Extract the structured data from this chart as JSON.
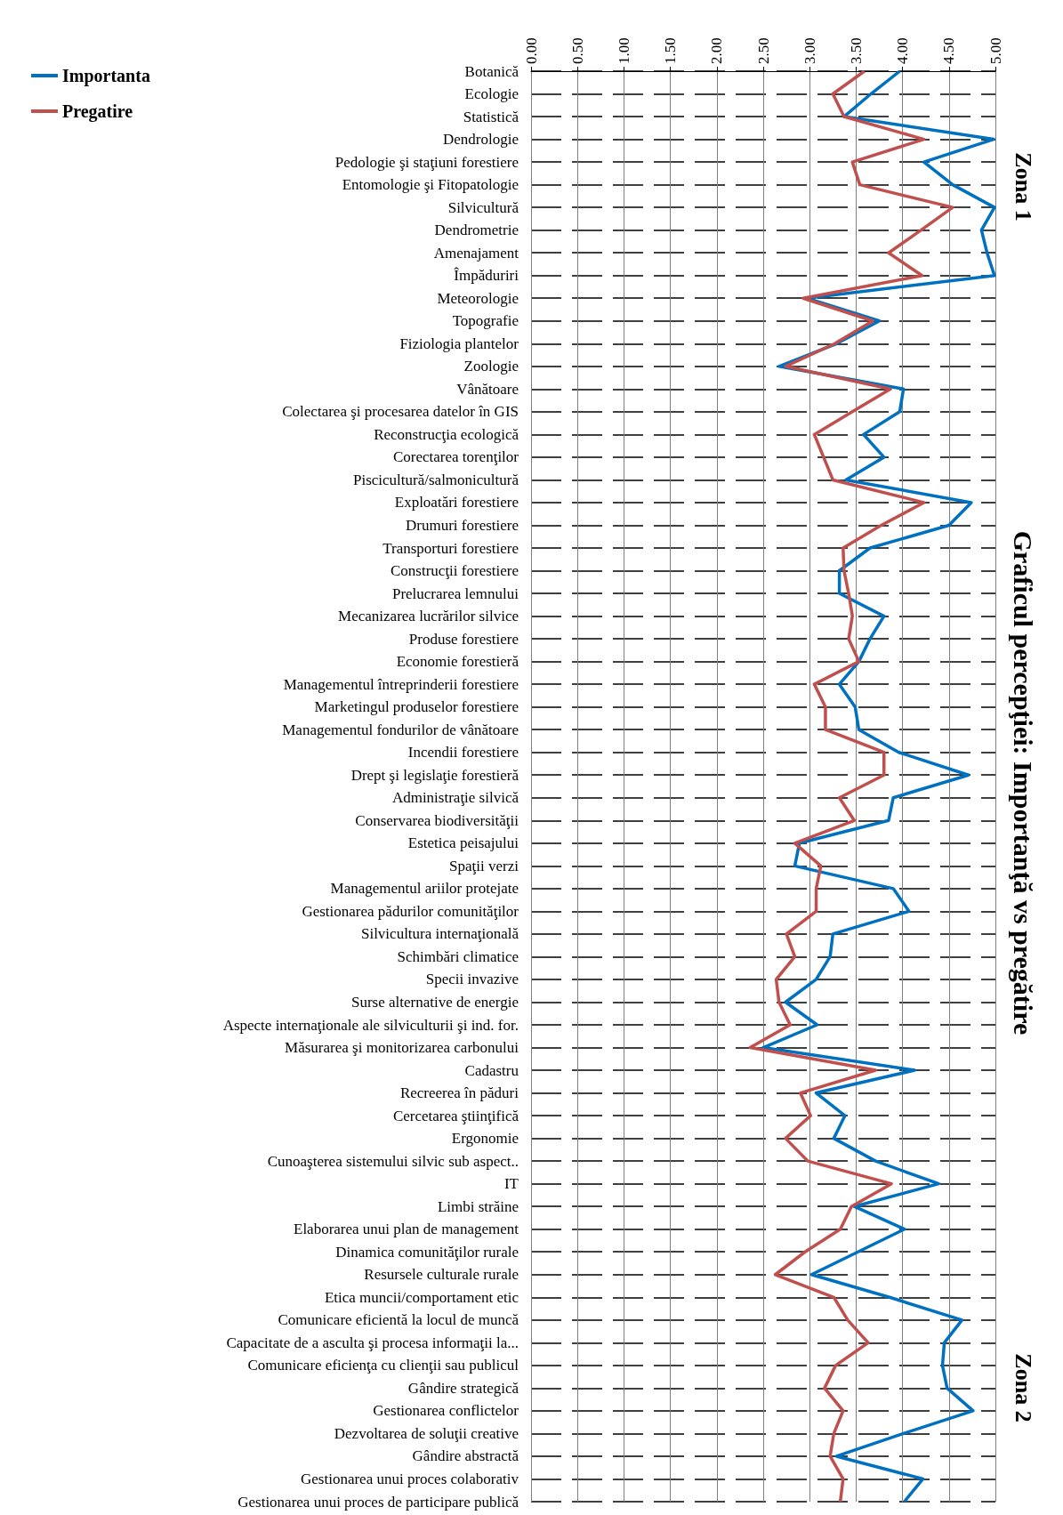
{
  "chart_data": {
    "type": "line",
    "orientation": "horizontal",
    "title": "Graficul percepţiei: Importanţă vs pregătire",
    "annotations": [
      "Zona 1",
      "Zona 2"
    ],
    "categories": [
      "Botanică",
      "Ecologie",
      "Statistică",
      "Dendrologie",
      "Pedologie şi staţiuni forestiere",
      "Entomologie şi Fitopatologie",
      "Silvicultură",
      "Dendrometrie",
      "Amenajament",
      "Împăduriri",
      "Meteorologie",
      "Topografie",
      "Fiziologia plantelor",
      "Zoologie",
      "Vânătoare",
      "Colectarea şi procesarea datelor în GIS",
      "Reconstrucţia ecologică",
      "Corectarea torenţilor",
      "Piscicultură/salmonicultură",
      "Exploatări forestiere",
      "Drumuri forestiere",
      "Transporturi forestiere",
      "Construcţii forestiere",
      "Prelucrarea lemnului",
      "Mecanizarea lucrărilor silvice",
      "Produse forestiere",
      "Economie forestieră",
      "Managementul întreprinderii forestiere",
      "Marketingul produselor forestiere",
      "Managementul fondurilor de vânătoare",
      "Incendii forestiere",
      "Drept şi legislaţie forestieră",
      "Administraţie silvică",
      "Conservarea biodiversităţii",
      "Estetica peisajului",
      "Spaţii verzi",
      "Managementul ariilor protejate",
      "Gestionarea pădurilor comunităţilor",
      "Silvicultura internaţională",
      "Schimbări climatice",
      "Specii invazive",
      "Surse alternative de energie",
      "Aspecte internaţionale ale silviculturii şi ind. for.",
      "Măsurarea şi monitorizarea carbonului",
      "Cadastru",
      "Recreerea în păduri",
      "Cercetarea ştiinţifică",
      "Ergonomie",
      "Cunoaşterea sistemului silvic sub aspect..",
      "IT",
      "Limbi străine",
      "Elaborarea unui plan de management",
      "Dinamica comunităţilor rurale",
      "Resursele culturale rurale",
      "Etica muncii/comportament etic",
      "Comunicare eficientă la locul de muncă",
      "Capacitate de a asculta şi procesa informaţii la...",
      "Comunicare eficienţa cu clienţii sau publicul",
      "Gândire strategică",
      "Gestionarea conflictelor",
      "Dezvoltarea de soluţii creative",
      "Gândire abstractă",
      "Gestionarea unui proces colaborativ",
      "Gestionarea unui proces de participare publică"
    ],
    "series": [
      {
        "name": "Importanta",
        "color": "#0070c0",
        "values": [
          3.97,
          3.66,
          3.37,
          4.98,
          4.23,
          4.54,
          4.99,
          4.85,
          4.91,
          4.99,
          2.97,
          3.75,
          3.29,
          2.67,
          4.01,
          3.97,
          3.58,
          3.8,
          3.39,
          4.74,
          4.5,
          3.65,
          3.32,
          3.32,
          3.8,
          3.65,
          3.53,
          3.32,
          3.49,
          3.53,
          3.96,
          4.71,
          3.9,
          3.85,
          2.89,
          2.84,
          3.9,
          4.07,
          3.25,
          3.22,
          3.07,
          2.74,
          3.08,
          2.5,
          4.13,
          3.07,
          3.38,
          3.26,
          3.71,
          4.39,
          3.48,
          4.02,
          3.52,
          3.02,
          3.86,
          4.64,
          4.45,
          4.43,
          4.48,
          4.76,
          4.01,
          3.29,
          4.22,
          4.02
        ]
      },
      {
        "name": "Pregatire",
        "color": "#c0504d",
        "values": [
          3.59,
          3.25,
          3.37,
          4.23,
          3.46,
          3.54,
          4.54,
          4.2,
          3.85,
          4.21,
          2.93,
          3.68,
          3.27,
          2.74,
          3.87,
          3.46,
          3.05,
          3.15,
          3.25,
          4.23,
          3.77,
          3.36,
          3.37,
          3.42,
          3.46,
          3.42,
          3.53,
          3.05,
          3.17,
          3.17,
          3.8,
          3.8,
          3.32,
          3.48,
          2.84,
          3.12,
          3.07,
          3.07,
          2.75,
          2.84,
          2.64,
          2.67,
          2.79,
          2.36,
          3.71,
          2.9,
          3.01,
          2.74,
          2.98,
          3.88,
          3.45,
          3.33,
          2.95,
          2.63,
          3.26,
          3.41,
          3.63,
          3.28,
          3.16,
          3.36,
          3.26,
          3.22,
          3.36,
          3.33
        ]
      }
    ],
    "xlim": [
      0,
      5
    ],
    "xticks": [
      {
        "value": 0,
        "label": "0.00"
      },
      {
        "value": 0.5,
        "label": "0.50"
      },
      {
        "value": 1,
        "label": "1.00"
      },
      {
        "value": 1.5,
        "label": "1.50"
      },
      {
        "value": 2,
        "label": "2.00"
      },
      {
        "value": 2.5,
        "label": "2.50"
      },
      {
        "value": 3,
        "label": "3.00"
      },
      {
        "value": 3.5,
        "label": "3.50"
      },
      {
        "value": 4,
        "label": "4.00"
      },
      {
        "value": 4.5,
        "label": "4.50"
      },
      {
        "value": 5,
        "label": "5.00"
      }
    ],
    "grid": true,
    "legend": "left",
    "marker": "none",
    "line_style": "solid"
  }
}
